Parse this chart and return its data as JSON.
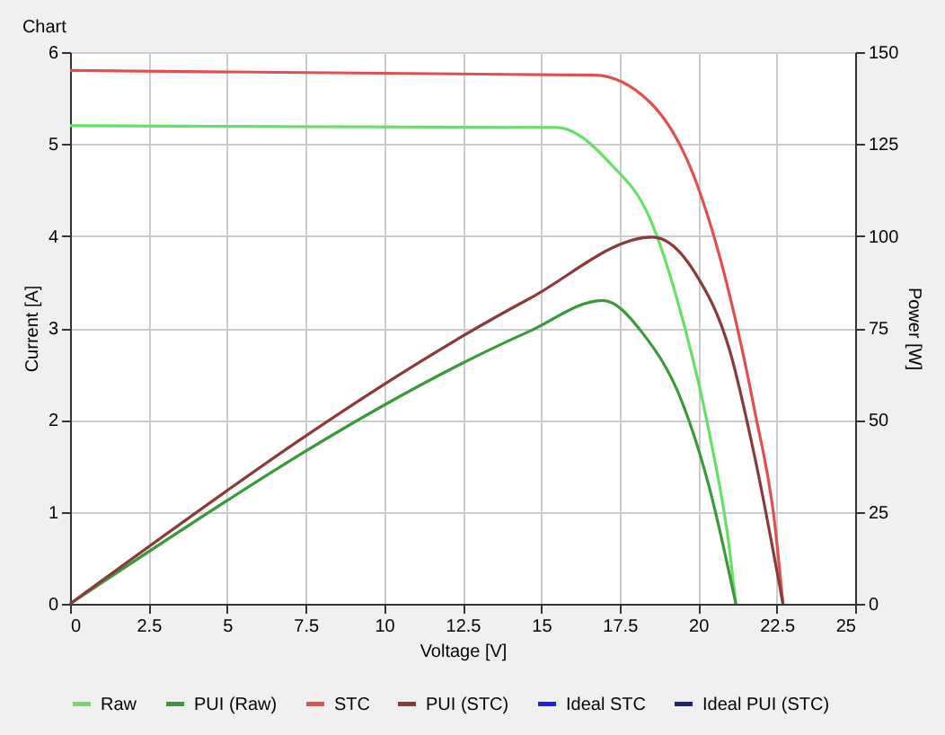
{
  "chart_data": {
    "type": "line",
    "title": "Chart",
    "xlabel": "Voltage [V]",
    "ylabel": "Current [A]",
    "y2label": "Power [W]",
    "xlim": [
      0,
      25
    ],
    "xticks": [
      0,
      2.5,
      5,
      7.5,
      10,
      12.5,
      15,
      17.5,
      20,
      22.5,
      25
    ],
    "ylim": [
      0,
      6
    ],
    "yticks": [
      0,
      1,
      2,
      3,
      4,
      5,
      6
    ],
    "y2lim": [
      0,
      150
    ],
    "y2ticks": [
      0,
      25,
      50,
      75,
      100,
      125,
      150
    ],
    "grid": true,
    "legend": "bottom",
    "series": [
      {
        "name": "Raw",
        "color": "#66e066",
        "x": [
          0,
          15.5,
          17.2,
          18.45,
          19.5,
          20.36,
          21.0,
          21.2
        ],
        "values": [
          5.2,
          5.18,
          4.79,
          4.2,
          3.1,
          1.85,
          0.59,
          0
        ]
      },
      {
        "name": "PUI (Raw)",
        "color": "#3a9a3a",
        "axis": "y2",
        "x": [
          0,
          14.6,
          16.96,
          18.24,
          19.5,
          20.36,
          21.2
        ],
        "values": [
          0,
          74,
          82.5,
          73.5,
          54.6,
          31.5,
          0
        ]
      },
      {
        "name": "STC",
        "color": "#e05050",
        "x": [
          0,
          16.7,
          18.45,
          19.9,
          21.0,
          21.8,
          22.45,
          22.7
        ],
        "values": [
          5.8,
          5.75,
          5.46,
          4.62,
          3.36,
          2.1,
          0.84,
          0
        ]
      },
      {
        "name": "PUI (STC)",
        "color": "#8b3a3a",
        "axis": "y2",
        "x": [
          0,
          14.63,
          18.55,
          19.9,
          21.0,
          21.8,
          22.7
        ],
        "values": [
          0,
          83,
          99.7,
          90,
          69,
          40,
          0
        ]
      },
      {
        "name": "Ideal STC",
        "color": "#2020e0"
      },
      {
        "name": "Ideal PUI (STC)",
        "color": "#1f1f7a",
        "axis": "y2"
      }
    ]
  }
}
